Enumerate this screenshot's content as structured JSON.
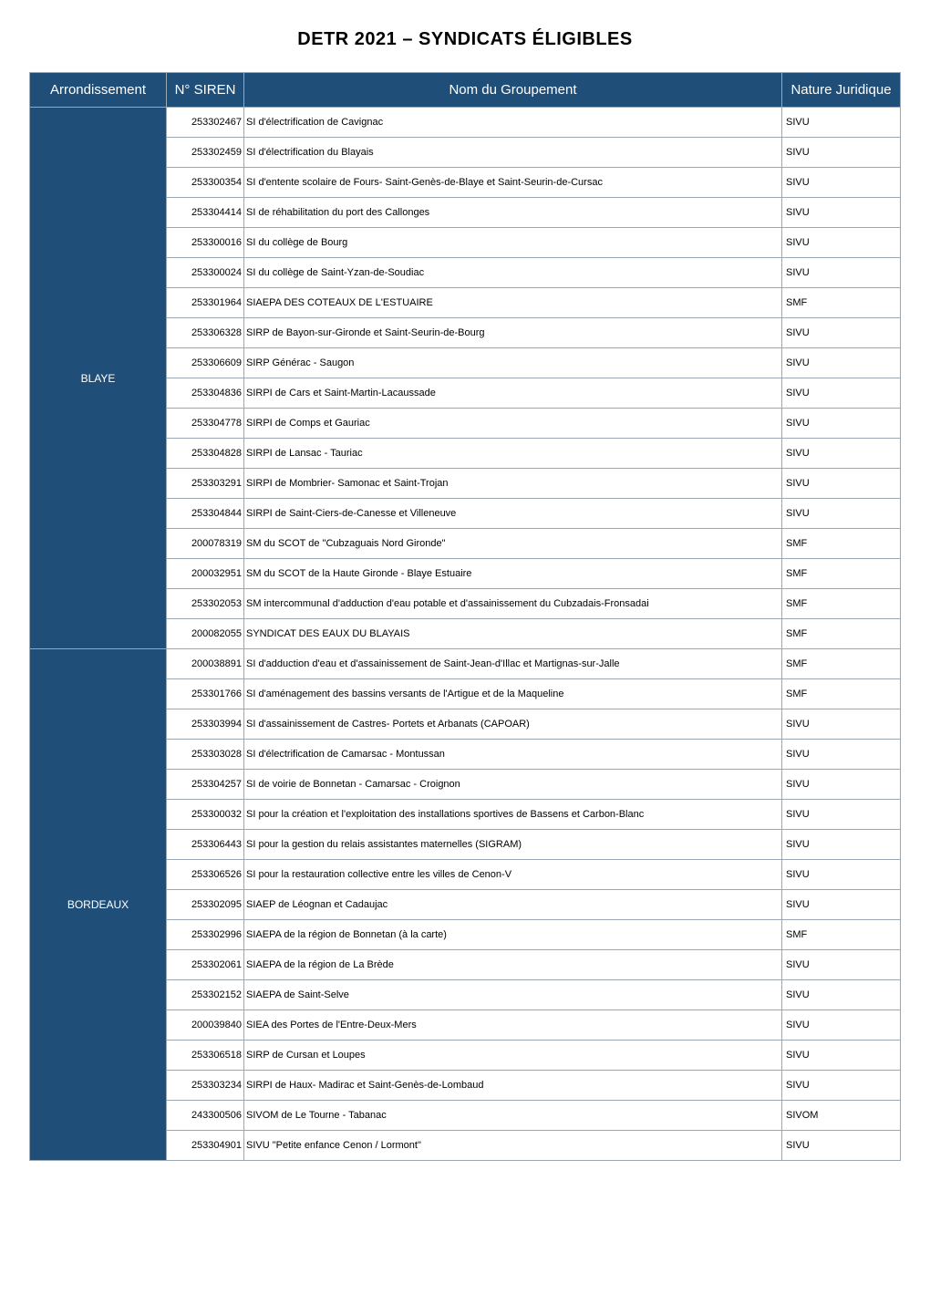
{
  "title": "DETR 2021 – SYNDICATS   ÉLIGIBLES",
  "headers": {
    "arrondissement": "Arrondissement",
    "siren": "N° SIREN",
    "nom": "Nom du Groupement",
    "nature": "Nature Juridique"
  },
  "colors": {
    "header_bg": "#1f4e79",
    "header_fg": "#ffffff",
    "border": "#9aa8b5",
    "body_bg": "#ffffff",
    "body_fg": "#000000"
  },
  "groups": [
    {
      "arrondissement": "BLAYE",
      "rows": [
        {
          "siren": "253302467",
          "nom": "SI d'électrification de Cavignac",
          "nature": "SIVU"
        },
        {
          "siren": "253302459",
          "nom": "SI d'électrification du Blayais",
          "nature": "SIVU"
        },
        {
          "siren": "253300354",
          "nom": "SI d'entente scolaire de Fours- Saint-Genès-de-Blaye et Saint-Seurin-de-Cursac",
          "nature": "SIVU"
        },
        {
          "siren": "253304414",
          "nom": "SI de réhabilitation du port des Callonges",
          "nature": "SIVU"
        },
        {
          "siren": "253300016",
          "nom": "SI du collège de Bourg",
          "nature": "SIVU"
        },
        {
          "siren": "253300024",
          "nom": "SI du collège de Saint-Yzan-de-Soudiac",
          "nature": "SIVU"
        },
        {
          "siren": "253301964",
          "nom": "SIAEPA DES COTEAUX DE L'ESTUAIRE",
          "nature": "SMF"
        },
        {
          "siren": "253306328",
          "nom": "SIRP de Bayon-sur-Gironde et Saint-Seurin-de-Bourg",
          "nature": "SIVU"
        },
        {
          "siren": "253306609",
          "nom": "SIRP Générac - Saugon",
          "nature": "SIVU"
        },
        {
          "siren": "253304836",
          "nom": "SIRPI de Cars et Saint-Martin-Lacaussade",
          "nature": "SIVU"
        },
        {
          "siren": "253304778",
          "nom": "SIRPI de Comps et Gauriac",
          "nature": "SIVU"
        },
        {
          "siren": "253304828",
          "nom": "SIRPI de Lansac - Tauriac",
          "nature": "SIVU"
        },
        {
          "siren": "253303291",
          "nom": "SIRPI de Mombrier- Samonac et Saint-Trojan",
          "nature": "SIVU"
        },
        {
          "siren": "253304844",
          "nom": "SIRPI de Saint-Ciers-de-Canesse et Villeneuve",
          "nature": "SIVU"
        },
        {
          "siren": "200078319",
          "nom": "SM du SCOT de \"Cubzaguais Nord Gironde\"",
          "nature": "SMF"
        },
        {
          "siren": "200032951",
          "nom": "SM du SCOT de la Haute Gironde - Blaye Estuaire",
          "nature": "SMF"
        },
        {
          "siren": "253302053",
          "nom": "SM intercommunal d'adduction d'eau potable et d'assainissement du Cubzadais-Fronsadai",
          "nature": "SMF"
        },
        {
          "siren": "200082055",
          "nom": "SYNDICAT DES EAUX DU BLAYAIS",
          "nature": "SMF"
        }
      ]
    },
    {
      "arrondissement": "BORDEAUX",
      "rows": [
        {
          "siren": "200038891",
          "nom": "SI d'adduction d'eau et d'assainissement de Saint-Jean-d'Illac et Martignas-sur-Jalle",
          "nature": "SMF"
        },
        {
          "siren": "253301766",
          "nom": "SI d'aménagement des bassins versants de l'Artigue et de la Maqueline",
          "nature": "SMF"
        },
        {
          "siren": "253303994",
          "nom": "SI d'assainissement de Castres- Portets et Arbanats (CAPOAR)",
          "nature": "SIVU"
        },
        {
          "siren": "253303028",
          "nom": "SI d'électrification de Camarsac - Montussan",
          "nature": "SIVU"
        },
        {
          "siren": "253304257",
          "nom": "SI de voirie de Bonnetan - Camarsac - Croignon",
          "nature": "SIVU"
        },
        {
          "siren": "253300032",
          "nom": "SI pour la création et l'exploitation des installations sportives de Bassens et Carbon-Blanc",
          "nature": "SIVU"
        },
        {
          "siren": "253306443",
          "nom": "SI pour la gestion du relais assistantes maternelles (SIGRAM)",
          "nature": "SIVU"
        },
        {
          "siren": "253306526",
          "nom": "SI pour la restauration collective entre les villes de Cenon-V",
          "nature": "SIVU"
        },
        {
          "siren": "253302095",
          "nom": "SIAEP de Léognan et Cadaujac",
          "nature": "SIVU"
        },
        {
          "siren": "253302996",
          "nom": "SIAEPA de la région de Bonnetan (à la carte)",
          "nature": "SMF"
        },
        {
          "siren": "253302061",
          "nom": "SIAEPA de la région de La Brède",
          "nature": "SIVU"
        },
        {
          "siren": "253302152",
          "nom": "SIAEPA de Saint-Selve",
          "nature": "SIVU"
        },
        {
          "siren": "200039840",
          "nom": "SIEA des Portes de l'Entre-Deux-Mers",
          "nature": "SIVU"
        },
        {
          "siren": "253306518",
          "nom": "SIRP de Cursan et Loupes",
          "nature": "SIVU"
        },
        {
          "siren": "253303234",
          "nom": "SIRPI de Haux- Madirac et Saint-Genès-de-Lombaud",
          "nature": "SIVU"
        },
        {
          "siren": "243300506",
          "nom": "SIVOM de Le Tourne - Tabanac",
          "nature": "SIVOM"
        },
        {
          "siren": "253304901",
          "nom": "SIVU \"Petite enfance Cenon / Lormont\"",
          "nature": "SIVU"
        }
      ]
    }
  ]
}
